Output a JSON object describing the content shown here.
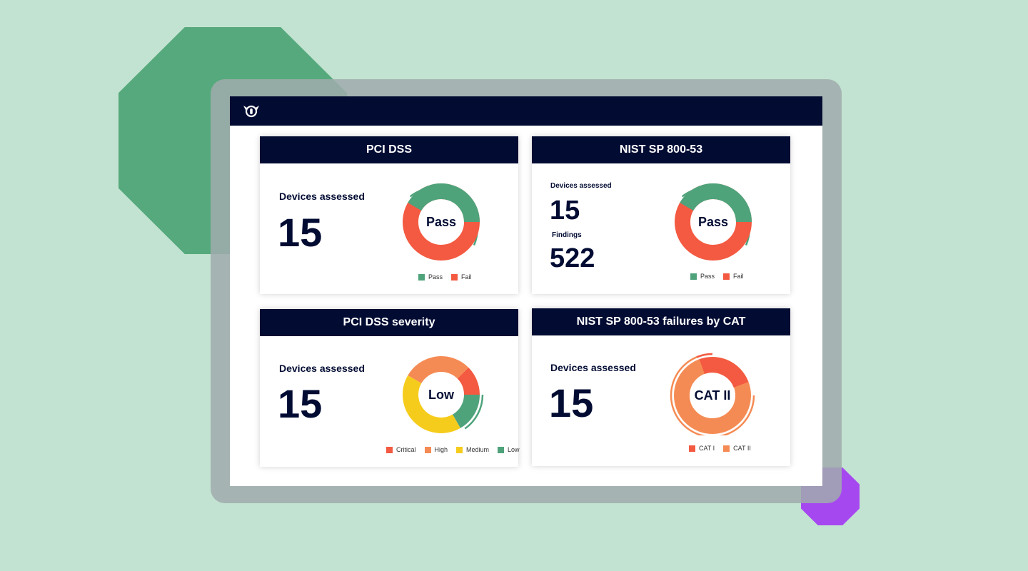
{
  "colors": {
    "navy": "#020c33",
    "pass": "#4fa37b",
    "fail": "#f35a41",
    "critical": "#f35a41",
    "high": "#f58b54",
    "medium": "#f6cc1c",
    "low": "#4fa37b",
    "cat1": "#f35a41",
    "cat2": "#f58b54"
  },
  "topbar": {
    "logo_icon": "owl-logo-icon"
  },
  "cards": {
    "pci": {
      "title": "PCI DSS",
      "devices_label": "Devices assessed",
      "devices_value": "15",
      "center_label": "Pass",
      "legend": [
        "Pass",
        "Fail"
      ]
    },
    "nist": {
      "title": "NIST SP 800-53",
      "devices_label": "Devices assessed",
      "devices_value": "15",
      "findings_label": "Findings",
      "findings_value": "522",
      "center_label": "Pass",
      "legend": [
        "Pass",
        "Fail"
      ]
    },
    "pci_severity": {
      "title": "PCI DSS severity",
      "devices_label": "Devices assessed",
      "devices_value": "15",
      "center_label": "Low",
      "legend": [
        "Critical",
        "High",
        "Medium",
        "Low"
      ]
    },
    "nist_cat": {
      "title": "NIST SP 800-53 failures by CAT",
      "devices_label": "Devices assessed",
      "devices_value": "15",
      "center_label": "CAT II",
      "legend": [
        "CAT I",
        "CAT II"
      ]
    }
  }
}
